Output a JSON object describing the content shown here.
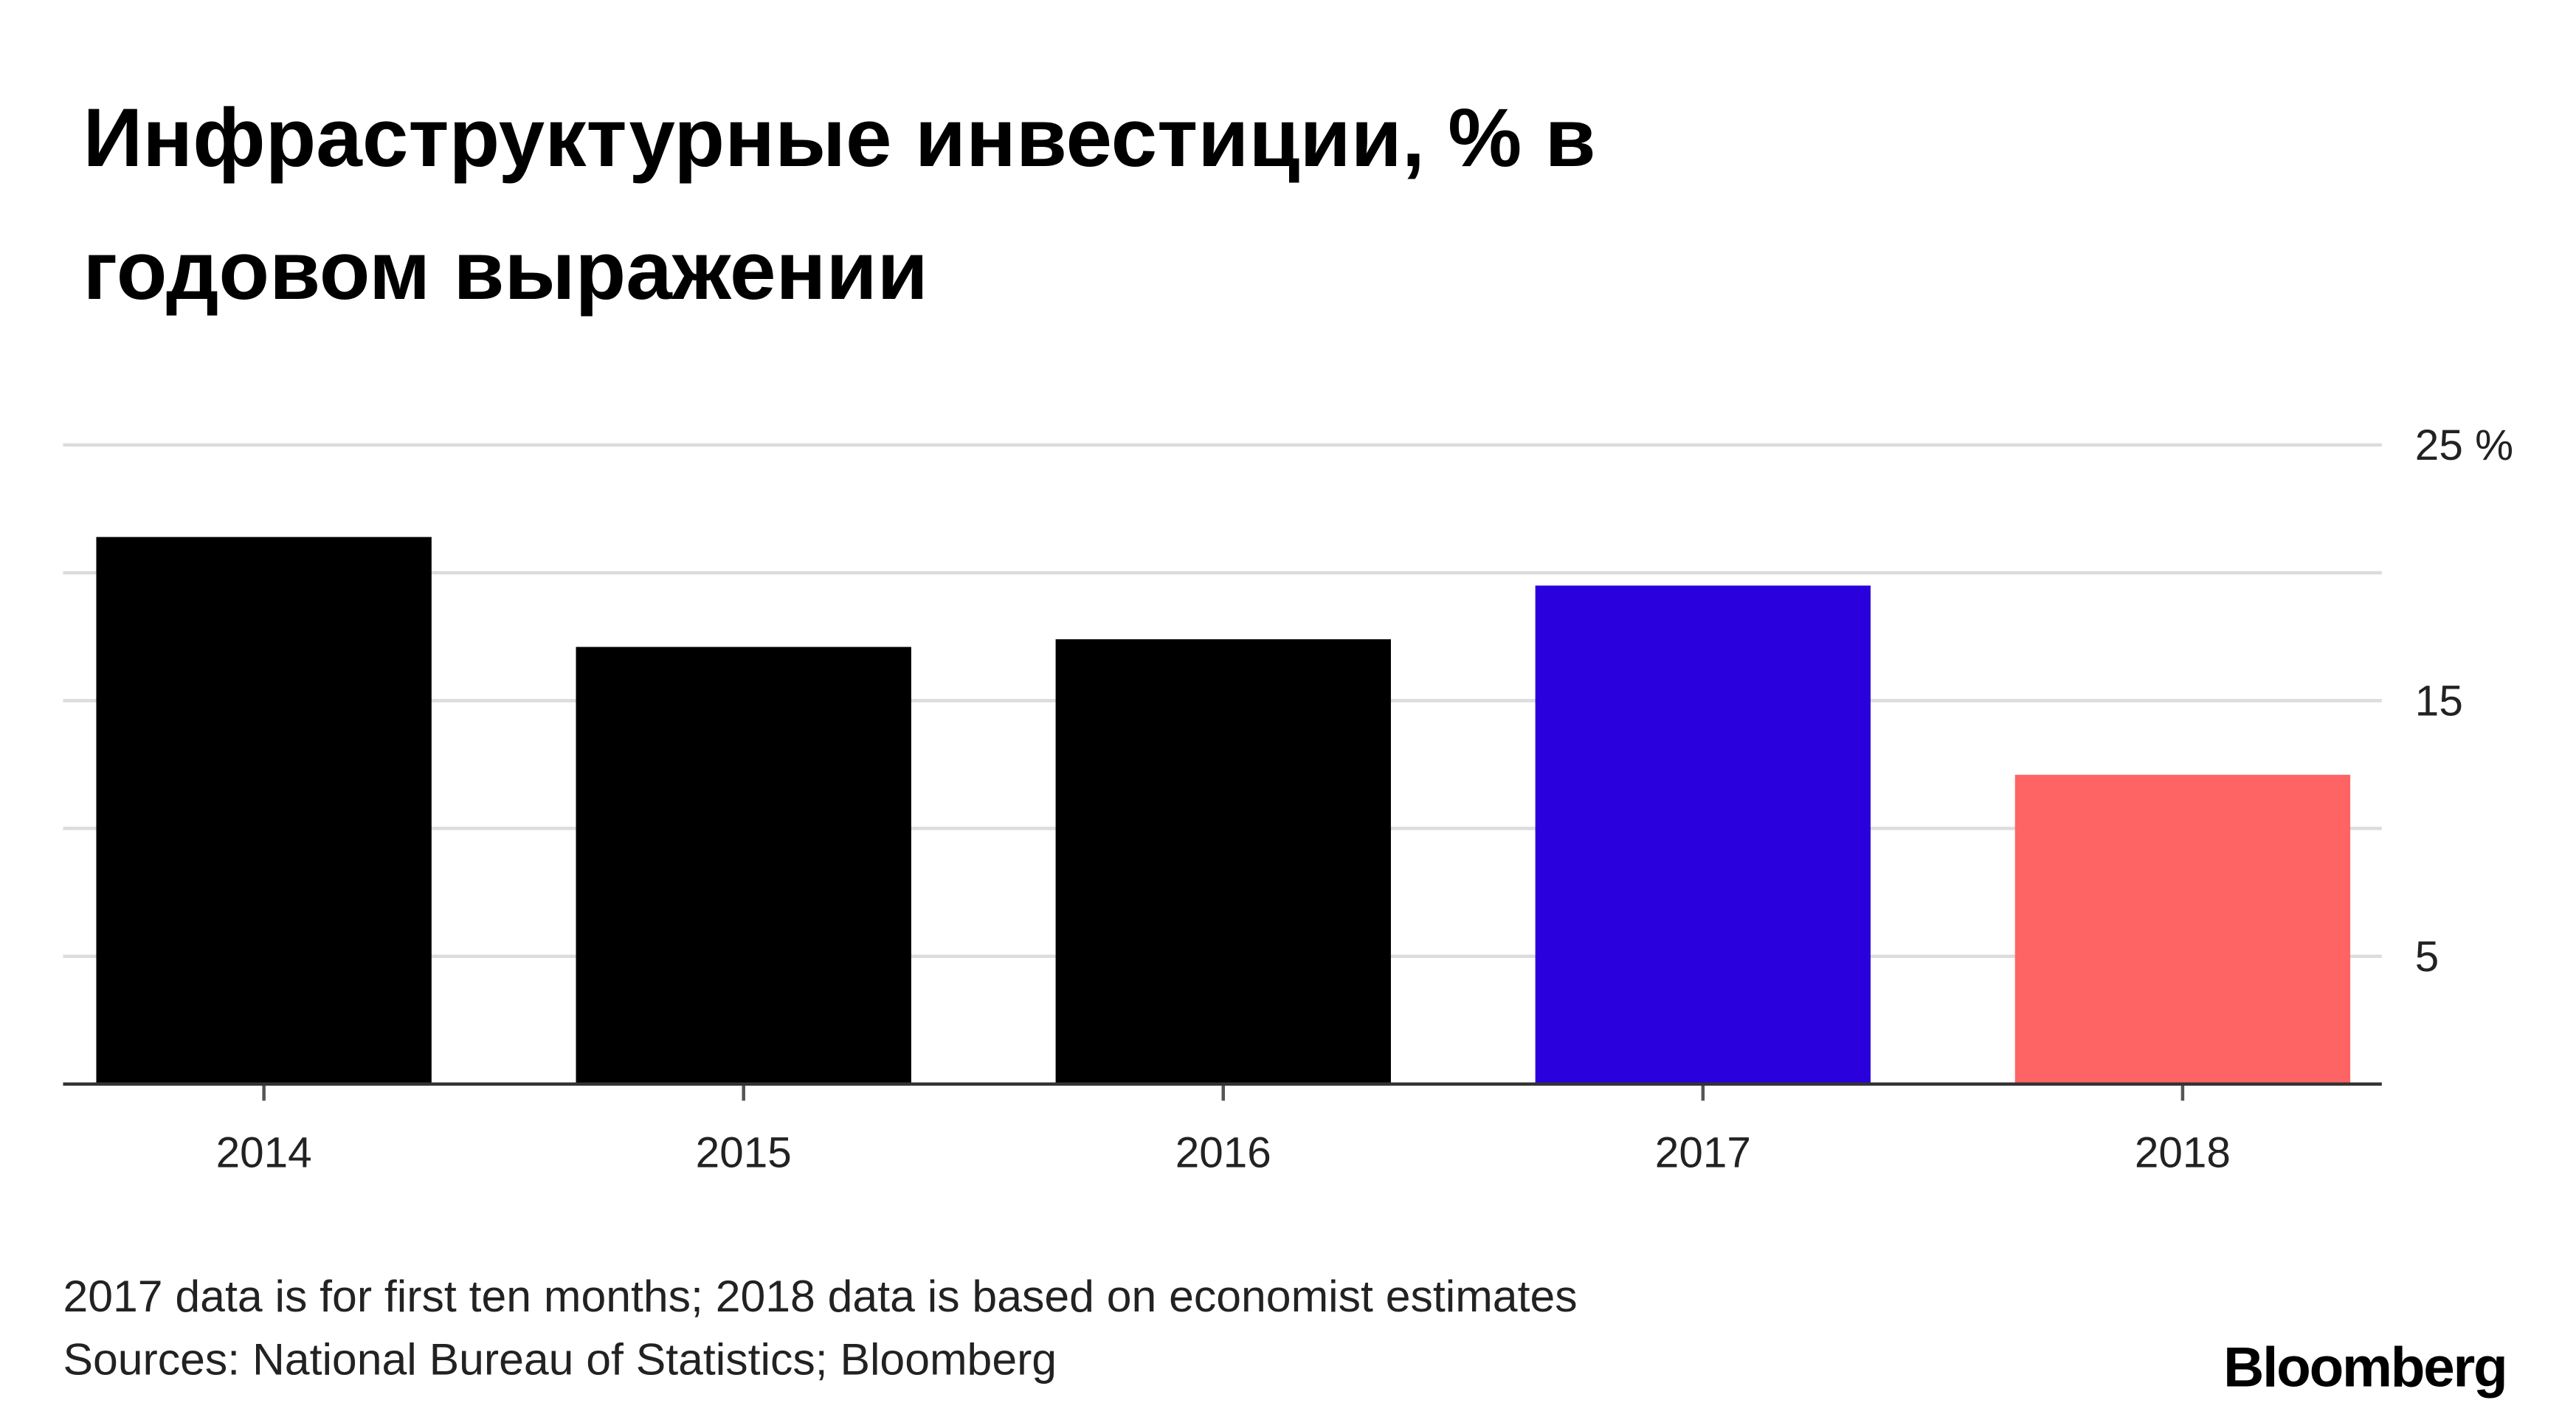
{
  "chart_data": {
    "type": "bar",
    "title": [
      "Инфраструктурные инвестиции, % в",
      "годовом выражении"
    ],
    "categories": [
      "2014",
      "2015",
      "2016",
      "2017",
      "2018"
    ],
    "values": [
      21.4,
      17.1,
      17.4,
      19.5,
      12.1
    ],
    "colors": [
      "#000000",
      "#000000",
      "#000000",
      "#2a00dd",
      "#ff6464"
    ],
    "ylim": [
      0,
      25
    ],
    "yticks": [
      5,
      15,
      {
        "value": 25,
        "label": "25 %"
      }
    ],
    "minor_yticks": [
      10,
      20
    ],
    "grid": true,
    "notes": [
      "2017 data is for first ten months; 2018 data is based on economist estimates",
      "Sources: National Bureau of Statistics; Bloomberg"
    ],
    "logo": "Bloomberg"
  }
}
